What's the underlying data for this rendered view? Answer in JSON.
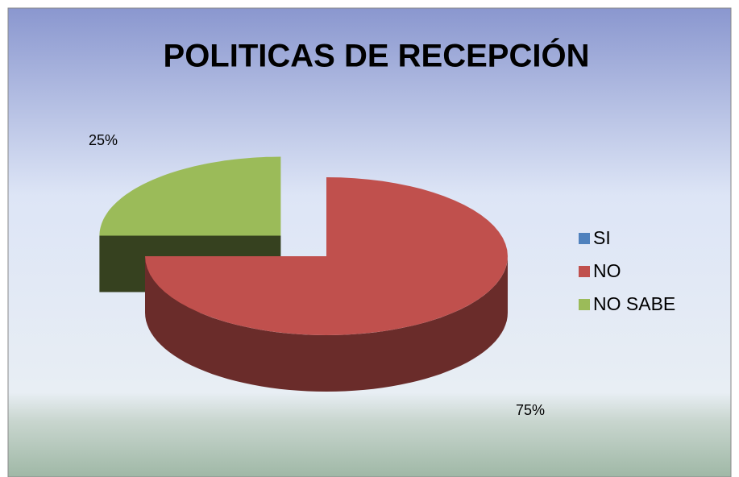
{
  "chart_data": {
    "type": "pie3d",
    "title": "POLITICAS DE RECEPCIÓN",
    "categories": [
      "SI",
      "NO",
      "NO SABE"
    ],
    "values": [
      0,
      75,
      25
    ],
    "value_labels": [
      null,
      "75%",
      "25%"
    ],
    "colors": [
      "#4f81bd",
      "#c0504d",
      "#9bbb59"
    ],
    "legend": "right"
  }
}
